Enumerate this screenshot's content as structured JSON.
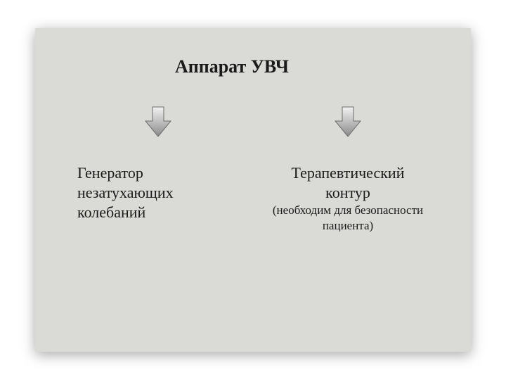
{
  "slide": {
    "title": "Аппарат УВЧ",
    "title_fontsize": 26,
    "background_color": "#dadbd6",
    "text_color": "#1a1a1a",
    "arrow": {
      "width": 40,
      "height": 46,
      "grad_top": "#f2f2f2",
      "grad_bottom": "#8a8a8a",
      "stroke": "#6c6c6c"
    },
    "columns": [
      {
        "key": "left",
        "main": "Генератор незатухающих колебаний",
        "main_fontsize": 22,
        "sub": "",
        "sub_fontsize": 17,
        "align": "left"
      },
      {
        "key": "right",
        "main": "Терапевтический контур",
        "main_fontsize": 22,
        "sub": "(необходим для безопасности пациента)",
        "sub_fontsize": 17,
        "align": "center"
      }
    ]
  }
}
